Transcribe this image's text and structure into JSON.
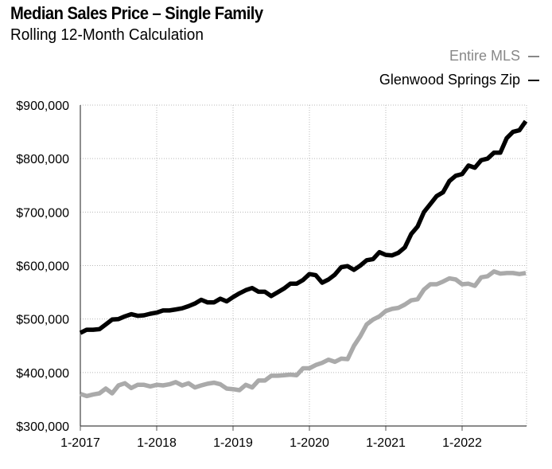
{
  "header": {
    "title": "Median Sales Price – Single Family",
    "subtitle": "Rolling 12-Month Calculation"
  },
  "legend": {
    "entire_label": "Entire MLS",
    "glenwood_label": "Glenwood Springs Zip",
    "entire_color": "#aaaaaa",
    "glenwood_color": "#000000"
  },
  "chart_data": {
    "type": "line",
    "title": "Median Sales Price – Single Family",
    "subtitle": "Rolling 12-Month Calculation",
    "xlabel": "",
    "ylabel": "",
    "x_start": "1-2017",
    "x_ticks": [
      "1-2017",
      "1-2018",
      "1-2019",
      "1-2020",
      "1-2021",
      "1-2022"
    ],
    "y_ticks": [
      "$300,000",
      "$400,000",
      "$500,000",
      "$600,000",
      "$700,000",
      "$800,000",
      "$900,000"
    ],
    "ylim": [
      300000,
      900000
    ],
    "grid": true,
    "legend_position": "top-right",
    "series": [
      {
        "name": "Entire MLS",
        "color": "#aaaaaa",
        "values": [
          360000,
          356000,
          359000,
          361000,
          370000,
          361000,
          376000,
          380000,
          371000,
          377000,
          377000,
          374000,
          377000,
          376000,
          378000,
          382000,
          376000,
          380000,
          372000,
          376000,
          379000,
          381000,
          378000,
          370000,
          369000,
          367000,
          377000,
          372000,
          385000,
          385000,
          394000,
          394000,
          395000,
          396000,
          395000,
          408000,
          408000,
          414000,
          418000,
          424000,
          420000,
          426000,
          425000,
          450000,
          468000,
          490000,
          499000,
          505000,
          515000,
          519000,
          521000,
          527000,
          535000,
          537000,
          555000,
          565000,
          565000,
          570000,
          576000,
          574000,
          565000,
          566000,
          562000,
          578000,
          580000,
          589000,
          585000,
          586000,
          586000,
          584000,
          586000
        ]
      },
      {
        "name": "Glenwood Springs Zip",
        "color": "#000000",
        "values": [
          474000,
          480000,
          480000,
          481000,
          490000,
          499000,
          500000,
          505000,
          509000,
          506000,
          507000,
          510000,
          512000,
          516000,
          516000,
          518000,
          520000,
          524000,
          529000,
          536000,
          531000,
          531000,
          538000,
          533000,
          541000,
          548000,
          554000,
          558000,
          551000,
          551000,
          543000,
          550000,
          557000,
          566000,
          566000,
          573000,
          584000,
          582000,
          568000,
          574000,
          583000,
          597000,
          599000,
          592000,
          600000,
          610000,
          612000,
          625000,
          620000,
          619000,
          624000,
          634000,
          659000,
          673000,
          700000,
          715000,
          730000,
          737000,
          758000,
          768000,
          771000,
          787000,
          783000,
          797000,
          800000,
          811000,
          811000,
          838000,
          850000,
          853000,
          870000
        ]
      }
    ]
  }
}
